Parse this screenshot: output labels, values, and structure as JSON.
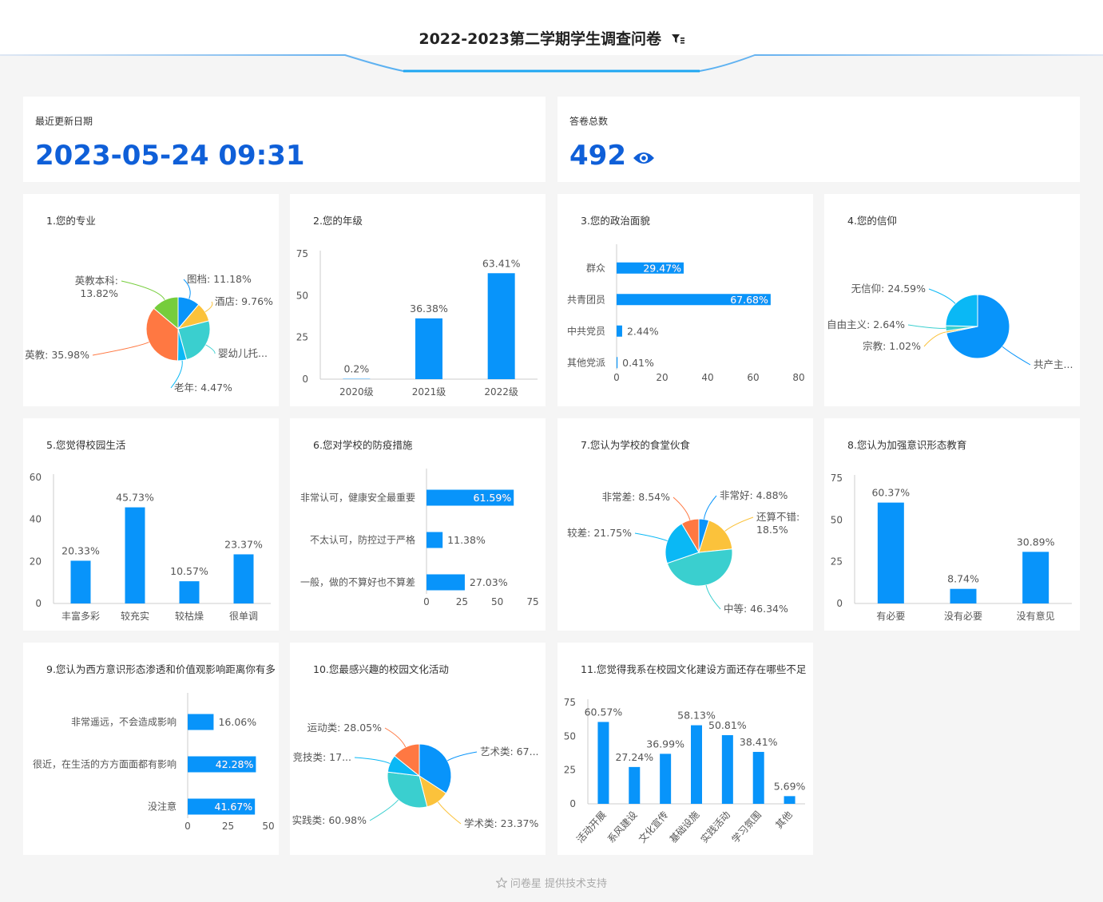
{
  "header": {
    "title": "2022-2023第二学期学生调查问卷"
  },
  "stats": {
    "update_label": "最近更新日期",
    "update_value": "2023-05-24 09:31",
    "total_label": "答卷总数",
    "total_value": "492"
  },
  "footer": {
    "text": "问卷星 提供技术支持"
  },
  "colors": {
    "accent": "#0f5fd8",
    "bar": "#0894fa"
  },
  "chart_data": [
    {
      "id": "c1",
      "type": "pie",
      "title": "1.您的专业",
      "slices": [
        {
          "label": "图档: 11.18%",
          "value": 11.18,
          "color": "#0894fa"
        },
        {
          "label": "酒店: 9.76%",
          "value": 9.76,
          "color": "#fbc23b"
        },
        {
          "label": "婴幼儿托...",
          "value": 24.79,
          "color": "#3acfcf"
        },
        {
          "label": "老年: 4.47%",
          "value": 4.47,
          "color": "#0ab8f5"
        },
        {
          "label": "英教: 35.98%",
          "value": 35.98,
          "color": "#ff7842"
        },
        {
          "label": "英教本科:\n13.82%",
          "value": 13.82,
          "color": "#76cd3c"
        }
      ]
    },
    {
      "id": "c2",
      "type": "bar",
      "title": "2.您的年级",
      "categories": [
        "2020级",
        "2021级",
        "2022级"
      ],
      "values": [
        0.2,
        36.38,
        63.41
      ],
      "data_labels": [
        "0.2%",
        "36.38%",
        "63.41%"
      ],
      "ylim": [
        0,
        75
      ],
      "yticks": [
        0,
        25,
        50,
        75
      ]
    },
    {
      "id": "c3",
      "type": "hbar",
      "title": "3.您的政治面貌",
      "categories": [
        "群众",
        "共青团员",
        "中共党员",
        "其他党派"
      ],
      "values": [
        29.47,
        67.68,
        2.44,
        0.41
      ],
      "data_labels": [
        "29.47%",
        "67.68%",
        "2.44%",
        "0.41%"
      ],
      "xlim": [
        0,
        80
      ],
      "xticks": [
        0,
        20,
        40,
        60,
        80
      ]
    },
    {
      "id": "c4",
      "type": "pie",
      "title": "4.您的信仰",
      "slices": [
        {
          "label": "共产主...",
          "value": 71.75,
          "color": "#0894fa"
        },
        {
          "label": "宗教: 1.02%",
          "value": 1.02,
          "color": "#fbc23b"
        },
        {
          "label": "自由主义: 2.64%",
          "value": 2.64,
          "color": "#3acfcf"
        },
        {
          "label": "无信仰: 24.59%",
          "value": 24.59,
          "color": "#0ab8f5"
        }
      ]
    },
    {
      "id": "c5",
      "type": "bar",
      "title": "5.您觉得校园生活",
      "categories": [
        "丰富多彩",
        "较充实",
        "较枯燥",
        "很单调"
      ],
      "values": [
        20.33,
        45.73,
        10.57,
        23.37
      ],
      "data_labels": [
        "20.33%",
        "45.73%",
        "10.57%",
        "23.37%"
      ],
      "ylim": [
        0,
        60
      ],
      "yticks": [
        0,
        20,
        40,
        60
      ]
    },
    {
      "id": "c6",
      "type": "hbar",
      "title": "6.您对学校的防疫措施",
      "categories": [
        "非常认可，健康安全最重要",
        "不太认可，防控过于严格",
        "一般，做的不算好也不算差"
      ],
      "values": [
        61.59,
        11.38,
        27.03
      ],
      "data_labels": [
        "61.59%",
        "11.38%",
        "27.03%"
      ],
      "xlim": [
        0,
        75
      ],
      "xticks": [
        0,
        25,
        50,
        75
      ]
    },
    {
      "id": "c7",
      "type": "pie",
      "title": "7.您认为学校的食堂伙食",
      "slices": [
        {
          "label": "非常好: 4.88%",
          "value": 4.88,
          "color": "#0894fa"
        },
        {
          "label": "还算不错:\n18.5%",
          "value": 18.5,
          "color": "#fbc23b"
        },
        {
          "label": "中等: 46.34%",
          "value": 46.34,
          "color": "#3acfcf"
        },
        {
          "label": "较差: 21.75%",
          "value": 21.75,
          "color": "#0ab8f5"
        },
        {
          "label": "非常差: 8.54%",
          "value": 8.54,
          "color": "#ff7842"
        }
      ]
    },
    {
      "id": "c8",
      "type": "bar",
      "title": "8.您认为加强意识形态教育",
      "categories": [
        "有必要",
        "没有必要",
        "没有意见"
      ],
      "values": [
        60.37,
        8.74,
        30.89
      ],
      "data_labels": [
        "60.37%",
        "8.74%",
        "30.89%"
      ],
      "ylim": [
        0,
        75
      ],
      "yticks": [
        0,
        25,
        50,
        75
      ]
    },
    {
      "id": "c9",
      "type": "hbar",
      "title": "9.您认为西方意识形态渗透和价值观影响距离你有多",
      "categories": [
        "非常遥远，不会造成影响",
        "很近，在生活的方方面面都有影响",
        "没注意"
      ],
      "values": [
        16.06,
        42.28,
        41.67
      ],
      "data_labels": [
        "16.06%",
        "42.28%",
        "41.67%"
      ],
      "xlim": [
        0,
        50
      ],
      "xticks": [
        0,
        25,
        50
      ]
    },
    {
      "id": "c10",
      "type": "pie",
      "title": "10.您最感兴趣的校园文化活动",
      "slices": [
        {
          "label": "艺术类: 67...",
          "value": 67.5,
          "color": "#0894fa"
        },
        {
          "label": "学术类: 23.37%",
          "value": 23.37,
          "color": "#fbc23b"
        },
        {
          "label": "实践类: 60.98%",
          "value": 60.98,
          "color": "#3acfcf"
        },
        {
          "label": "竞技类: 17...",
          "value": 17.5,
          "color": "#0ab8f5"
        },
        {
          "label": "运动类: 28.05%",
          "value": 28.05,
          "color": "#ff7842"
        }
      ]
    },
    {
      "id": "c11",
      "type": "bar",
      "title": "11.您觉得我系在校园文化建设方面还存在哪些不足",
      "categories": [
        "活动开展",
        "系风建设",
        "文化宣传",
        "基础设施",
        "实践活动",
        "学习氛围",
        "其他"
      ],
      "values": [
        60.57,
        27.24,
        36.99,
        58.13,
        50.81,
        38.41,
        5.69
      ],
      "data_labels": [
        "60.57%",
        "27.24%",
        "36.99%",
        "58.13%",
        "50.81%",
        "38.41%",
        "5.69%"
      ],
      "ylim": [
        0,
        75
      ],
      "yticks": [
        0,
        25,
        50,
        75
      ]
    }
  ]
}
